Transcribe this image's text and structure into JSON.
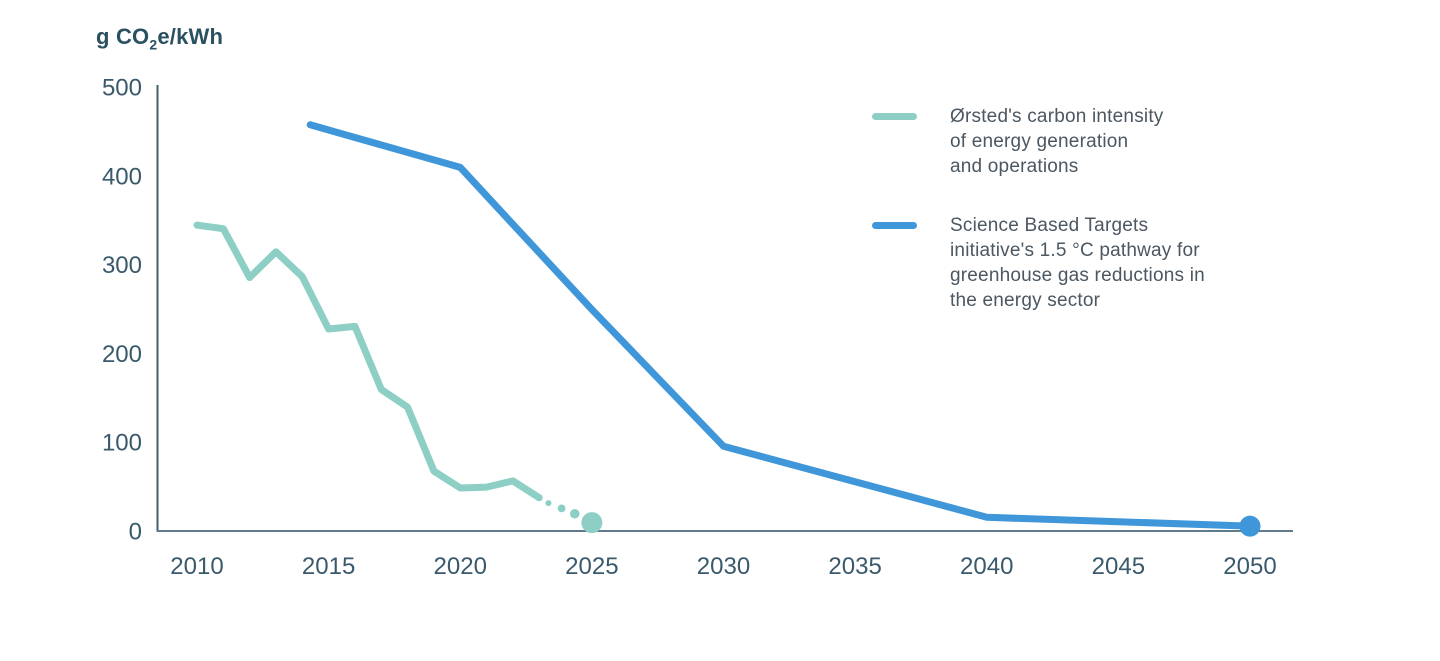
{
  "title": {
    "prefix": "g CO",
    "subscript": "2",
    "suffix": "e/kWh"
  },
  "chart_data": {
    "type": "line",
    "title": "g CO2e/kWh",
    "xlabel": "",
    "ylabel": "g CO2e/kWh",
    "xlim": [
      2010,
      2050
    ],
    "ylim": [
      0,
      500
    ],
    "grid": false,
    "legend_position": "right",
    "x_ticks": [
      "2010",
      "2015",
      "2020",
      "2025",
      "2030",
      "2035",
      "2040",
      "2045",
      "2050"
    ],
    "y_ticks": [
      "0",
      "100",
      "200",
      "300",
      "400",
      "500"
    ],
    "axis_color_vertical": "#435d6d",
    "axis_color_horizontal": "#5f7b8c",
    "tick_label_color": "#3a5a6c",
    "series": [
      {
        "name": "Ørsted's carbon intensity of energy generation and operations",
        "color": "#8dcfc5",
        "style": "solid line 2010-2023, dotted projection to 2025 target dot",
        "x": [
          2010,
          2011,
          2012,
          2013,
          2014,
          2015,
          2016,
          2017,
          2018,
          2019,
          2020,
          2021,
          2022,
          2023
        ],
        "values": [
          345,
          341,
          286,
          315,
          287,
          228,
          231,
          160,
          140,
          68,
          49,
          50,
          57,
          38
        ],
        "projection_x": [
          2023.35,
          2023.85,
          2024.35
        ],
        "projection_values": [
          32,
          26,
          20
        ],
        "endpoint": {
          "x": 2025,
          "value": 10
        }
      },
      {
        "name": "Science Based Targets initiative's 1.5 °C pathway for greenhouse gas reductions in the energy sector",
        "color": "#3f97d9",
        "style": "solid line with end dot at 2050",
        "x": [
          2014.3,
          2020,
          2025,
          2030,
          2035,
          2040,
          2045,
          2050
        ],
        "values": [
          458,
          410,
          250,
          96,
          56,
          16,
          11,
          6
        ],
        "endpoint": {
          "x": 2050,
          "value": 6
        }
      }
    ],
    "legend": [
      {
        "color": "#8dcfc5",
        "lines": [
          "Ørsted's carbon intensity",
          "of energy generation",
          "and operations"
        ]
      },
      {
        "color": "#3f97d9",
        "lines": [
          "Science Based Targets",
          "initiative's 1.5 °C pathway for",
          "greenhouse gas reductions in",
          "the energy sector"
        ]
      }
    ]
  }
}
